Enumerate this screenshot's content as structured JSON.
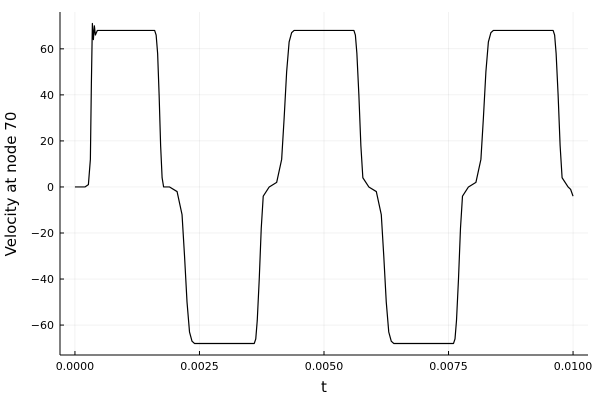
{
  "chart_data": {
    "type": "line",
    "title": "",
    "xlabel": "t",
    "ylabel": "Velocity at node 70",
    "xlim": [
      -0.0003,
      0.0103
    ],
    "ylim": [
      -73,
      76
    ],
    "grid": true,
    "legend": "none",
    "x_ticks": [
      {
        "value": 0.0,
        "label": "0.0000"
      },
      {
        "value": 0.0025,
        "label": "0.0025"
      },
      {
        "value": 0.005,
        "label": "0.0050"
      },
      {
        "value": 0.0075,
        "label": "0.0075"
      },
      {
        "value": 0.01,
        "label": "0.0100"
      }
    ],
    "y_ticks": [
      {
        "value": -60,
        "label": "−60"
      },
      {
        "value": -40,
        "label": "−40"
      },
      {
        "value": -20,
        "label": "−20"
      },
      {
        "value": 0,
        "label": "0"
      },
      {
        "value": 20,
        "label": "20"
      },
      {
        "value": 40,
        "label": "40"
      },
      {
        "value": 60,
        "label": "60"
      }
    ],
    "series": [
      {
        "color": "#000000",
        "x": [
          0.0,
          0.0002,
          0.00027,
          0.00031,
          0.00033,
          0.00035,
          0.00037,
          0.00039,
          0.00041,
          0.00045,
          0.0005,
          0.0016,
          0.00163,
          0.00166,
          0.00169,
          0.00172,
          0.00175,
          0.00178,
          0.0019,
          0.00205,
          0.00215,
          0.0022,
          0.00225,
          0.0023,
          0.00235,
          0.0024,
          0.00243,
          0.0036,
          0.00363,
          0.00366,
          0.0037,
          0.00374,
          0.00378,
          0.0039,
          0.00405,
          0.00415,
          0.0042,
          0.00425,
          0.0043,
          0.00435,
          0.0044,
          0.00443,
          0.0056,
          0.00563,
          0.00566,
          0.0057,
          0.00574,
          0.00578,
          0.0059,
          0.00605,
          0.00615,
          0.0062,
          0.00625,
          0.0063,
          0.00635,
          0.0064,
          0.00643,
          0.0076,
          0.00763,
          0.00766,
          0.0077,
          0.00774,
          0.00778,
          0.0079,
          0.00805,
          0.00815,
          0.0082,
          0.00825,
          0.0083,
          0.00835,
          0.0084,
          0.00843,
          0.0096,
          0.00963,
          0.00966,
          0.0097,
          0.00974,
          0.00978,
          0.0099,
          0.00995,
          0.01
        ],
        "y": [
          0,
          0,
          1,
          12,
          45,
          71,
          64,
          70,
          66,
          68,
          68,
          68,
          66,
          58,
          40,
          18,
          4,
          0,
          0,
          -2,
          -12,
          -30,
          -50,
          -63,
          -67,
          -68,
          -68,
          -68,
          -66,
          -58,
          -40,
          -18,
          -4,
          0,
          2,
          12,
          30,
          50,
          63,
          67,
          68,
          68,
          68,
          66,
          58,
          40,
          18,
          4,
          0,
          -2,
          -12,
          -30,
          -50,
          -63,
          -67,
          -68,
          -68,
          -68,
          -66,
          -58,
          -40,
          -18,
          -4,
          0,
          2,
          12,
          30,
          50,
          63,
          67,
          68,
          68,
          68,
          66,
          58,
          40,
          18,
          4,
          0,
          -1,
          -4
        ]
      }
    ]
  }
}
